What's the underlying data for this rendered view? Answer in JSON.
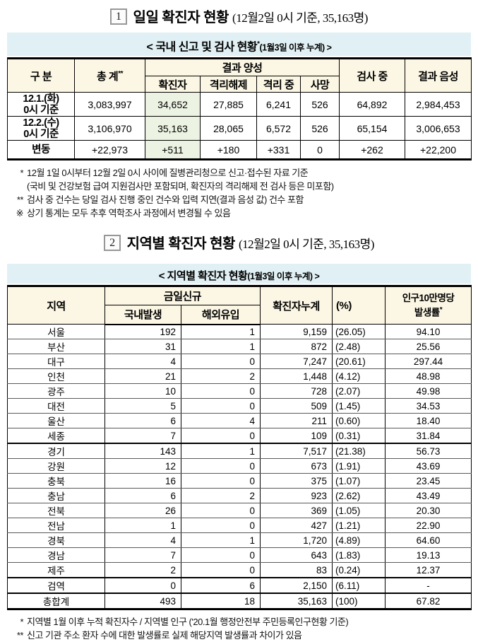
{
  "colors": {
    "band_bg": "#e1f0f4",
    "header_bg": "#fcf7e4",
    "highlight_bg": "#edf3e3"
  },
  "section1": {
    "no": "1",
    "title": "일일 확진자 현황",
    "subtitle": "(12월2일 0시 기준, 35,163명)",
    "caption": {
      "main": "< 국내 신고 및 검사 현황",
      "sup": "*",
      "tail": "(1월3일 이후 누계) >"
    },
    "table": {
      "headers": {
        "gubun": "구 분",
        "total": "총 계",
        "total_sup": "**",
        "positive_group": "결과 양성",
        "sub": [
          "확진자",
          "격리해제",
          "격리 중",
          "사망"
        ],
        "testing": "검사 중",
        "negative": "결과 음성"
      },
      "rows": [
        {
          "label": "12.1.(화)\n0시 기준",
          "values": [
            "3,083,997",
            "34,652",
            "27,885",
            "6,241",
            "526",
            "64,892",
            "2,984,453"
          ]
        },
        {
          "label": "12.2.(수)\n0시 기준",
          "values": [
            "3,106,970",
            "35,163",
            "28,065",
            "6,572",
            "526",
            "65,154",
            "3,006,653"
          ]
        },
        {
          "label": "변동",
          "slim": true,
          "values": [
            "+22,973",
            "+511",
            "+180",
            "+331",
            "0",
            "+262",
            "+22,200"
          ]
        }
      ]
    },
    "footnotes": [
      {
        "marker": "*",
        "text": "12월 1일 0시부터 12월 2일 0시 사이에 질병관리청으로 신고·접수된 자료 기준"
      },
      {
        "marker": "",
        "text": "(국비 및 건강보험 급여 지원검사만 포함되며, 확진자의 격리해제 전 검사 등은 미포함)"
      },
      {
        "marker": "**",
        "text": "검사 중 건수는 당일 검사 진행 중인 건수와 입력 지연(결과 음성 값) 건수 포함"
      },
      {
        "marker": "※",
        "text": "상기 통계는 모두 추후 역학조사 과정에서 변경될 수 있음"
      }
    ]
  },
  "section2": {
    "no": "2",
    "title": "지역별 확진자 현황",
    "subtitle": "(12월2일 0시 기준, 35,163명)",
    "caption": {
      "main": "< 지역별 확진자 현황",
      "sup": "",
      "tail": "(1월3일 이후 누계) >"
    },
    "table": {
      "headers": {
        "region": "지역",
        "new_today": "금일신규",
        "domestic": "국내발생",
        "imported": "해외유입",
        "cumulative": "확진자누계",
        "percent": "(%)",
        "rate": "인구10만명당\n발생률",
        "rate_sup": "*"
      },
      "rows": [
        {
          "region": "서울",
          "domestic": "192",
          "imported": "1",
          "cumulative": "9,159",
          "percent": "(26.05)",
          "rate": "94.10"
        },
        {
          "region": "부산",
          "domestic": "31",
          "imported": "1",
          "cumulative": "872",
          "percent": "(2.48)",
          "rate": "25.56"
        },
        {
          "region": "대구",
          "domestic": "4",
          "imported": "0",
          "cumulative": "7,247",
          "percent": "(20.61)",
          "rate": "297.44"
        },
        {
          "region": "인천",
          "domestic": "21",
          "imported": "2",
          "cumulative": "1,448",
          "percent": "(4.12)",
          "rate": "48.98"
        },
        {
          "region": "광주",
          "domestic": "10",
          "imported": "0",
          "cumulative": "728",
          "percent": "(2.07)",
          "rate": "49.98"
        },
        {
          "region": "대전",
          "domestic": "5",
          "imported": "0",
          "cumulative": "509",
          "percent": "(1.45)",
          "rate": "34.53"
        },
        {
          "region": "울산",
          "domestic": "6",
          "imported": "4",
          "cumulative": "211",
          "percent": "(0.60)",
          "rate": "18.40"
        },
        {
          "region": "세종",
          "domestic": "7",
          "imported": "0",
          "cumulative": "109",
          "percent": "(0.31)",
          "rate": "31.84"
        },
        {
          "region": "경기",
          "thick_top": true,
          "domestic": "143",
          "imported": "1",
          "cumulative": "7,517",
          "percent": "(21.38)",
          "rate": "56.73"
        },
        {
          "region": "강원",
          "domestic": "12",
          "imported": "0",
          "cumulative": "673",
          "percent": "(1.91)",
          "rate": "43.69"
        },
        {
          "region": "충북",
          "domestic": "16",
          "imported": "0",
          "cumulative": "375",
          "percent": "(1.07)",
          "rate": "23.45"
        },
        {
          "region": "충남",
          "domestic": "6",
          "imported": "2",
          "cumulative": "923",
          "percent": "(2.62)",
          "rate": "43.49"
        },
        {
          "region": "전북",
          "domestic": "26",
          "imported": "0",
          "cumulative": "369",
          "percent": "(1.05)",
          "rate": "20.30"
        },
        {
          "region": "전남",
          "domestic": "1",
          "imported": "0",
          "cumulative": "427",
          "percent": "(1.21)",
          "rate": "22.90"
        },
        {
          "region": "경북",
          "domestic": "4",
          "imported": "1",
          "cumulative": "1,720",
          "percent": "(4.89)",
          "rate": "64.60"
        },
        {
          "region": "경남",
          "domestic": "7",
          "imported": "0",
          "cumulative": "643",
          "percent": "(1.83)",
          "rate": "19.13"
        },
        {
          "region": "제주",
          "domestic": "2",
          "imported": "0",
          "cumulative": "83",
          "percent": "(0.24)",
          "rate": "12.37"
        },
        {
          "region": "검역",
          "thick_top": true,
          "domestic": "0",
          "imported": "6",
          "cumulative": "2,150",
          "percent": "(6.11)",
          "rate": "-"
        },
        {
          "region": "총합계",
          "thick_top": true,
          "domestic": "493",
          "imported": "18",
          "cumulative": "35,163",
          "percent": "(100)",
          "rate": "67.82"
        }
      ]
    },
    "footnotes": [
      {
        "marker": "*",
        "text": "지역별 1월 이후 누적 확진자수 / 지역별 인구 ('20.1월 행정안전부 주민등록인구현황 기준)"
      },
      {
        "marker": "**",
        "text": "신고 기관 주소 환자 수에 대한 발생률로 실제 해당지역 발생률과 차이가 있음"
      }
    ]
  }
}
